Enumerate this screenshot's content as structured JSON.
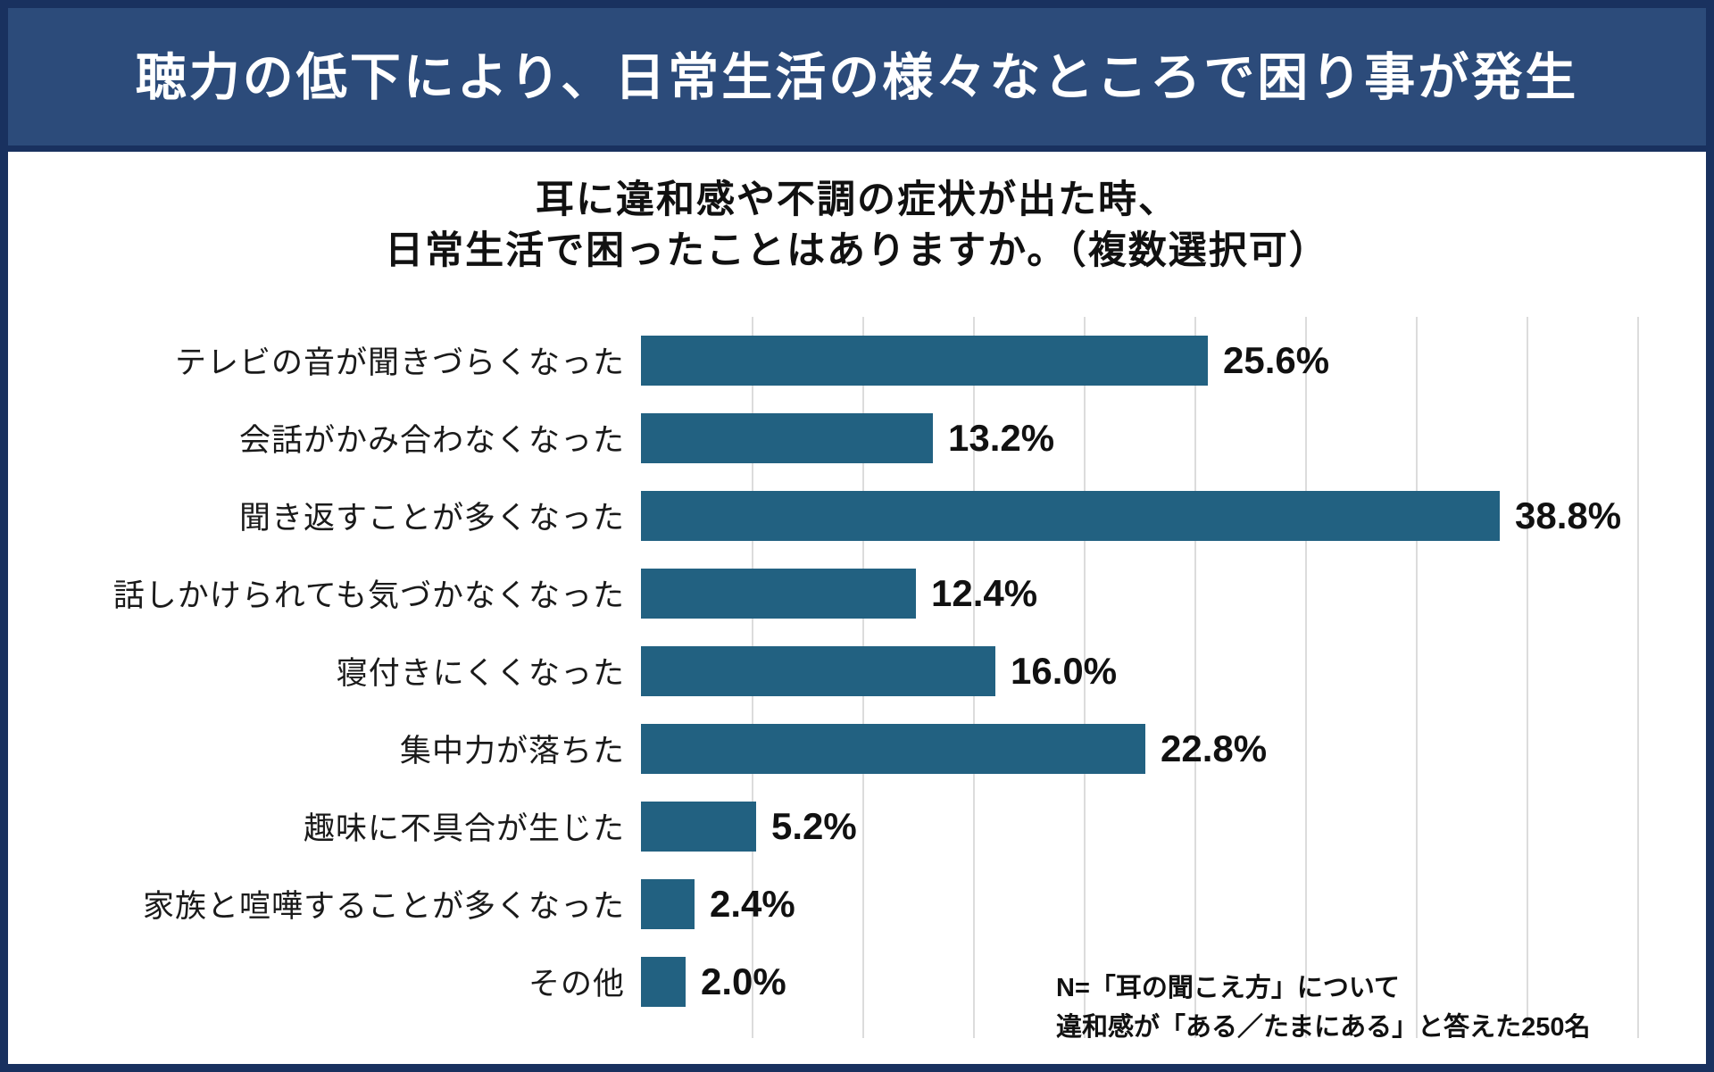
{
  "header": {
    "title": "聴力の低下により、日常生活の様々なところで困り事が発生"
  },
  "chart": {
    "subtitle_line1": "耳に違和感や不調の症状が出た時、",
    "subtitle_line2": "日常生活で困ったことはありますか。（複数選択可）"
  },
  "chart_data": {
    "type": "bar",
    "orientation": "horizontal",
    "title": "耳に違和感や不調の症状が出た時、日常生活で困ったことはありますか。（複数選択可）",
    "categories": [
      "テレビの音が聞きづらくなった",
      "会話がかみ合わなくなった",
      "聞き返すことが多くなった",
      "話しかけられても気づかなくなった",
      "寝付きにくくなった",
      "集中力が落ちた",
      "趣味に不具合が生じた",
      "家族と喧嘩することが多くなった",
      "その他"
    ],
    "values": [
      25.6,
      13.2,
      38.8,
      12.4,
      16.0,
      22.8,
      5.2,
      2.4,
      2.0
    ],
    "value_labels": [
      "25.6%",
      "13.2%",
      "38.8%",
      "12.4%",
      "16.0%",
      "22.8%",
      "5.2%",
      "2.4%",
      "2.0%"
    ],
    "unit": "%",
    "xlabel": "",
    "ylabel": "",
    "xlim": [
      0,
      45
    ],
    "gridline_step": 5,
    "grid": true,
    "legend": "none",
    "bar_color": "#226181",
    "annotation": "N=「耳の聞こえ方」について違和感が「ある／たまにある」と答えた250名"
  },
  "note": {
    "line1": "N=「耳の聞こえ方」について",
    "line2": "違和感が「ある／たまにある」と答えた250名"
  },
  "colors": {
    "band_navy": "#2c4b7a",
    "border_navy": "#19315f",
    "bar_teal": "#226181",
    "gridline_gray": "#dcdcdc",
    "text_black": "#111111"
  }
}
